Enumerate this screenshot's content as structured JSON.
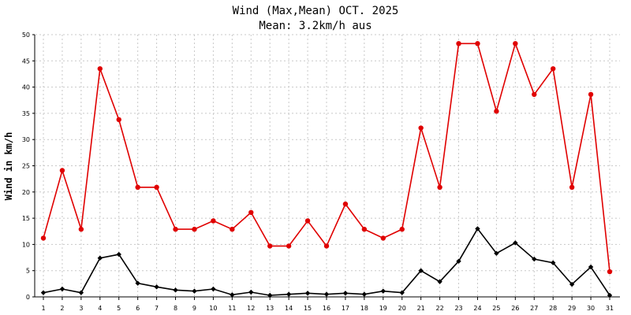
{
  "chart_data": {
    "type": "line",
    "title": "Wind (Max,Mean) OCT. 2025",
    "subtitle": "Mean: 3.2km/h aus",
    "xlabel": "",
    "ylabel": "Wind in km/h",
    "xlim": [
      1,
      31
    ],
    "ylim": [
      0,
      50
    ],
    "yticks": [
      0,
      5,
      10,
      15,
      20,
      25,
      30,
      35,
      40,
      45,
      50
    ],
    "grid": true,
    "legend": "none",
    "categories": [
      1,
      2,
      3,
      4,
      5,
      6,
      7,
      8,
      9,
      10,
      11,
      12,
      13,
      14,
      15,
      16,
      17,
      18,
      19,
      20,
      21,
      22,
      23,
      24,
      25,
      26,
      27,
      28,
      29,
      30,
      31
    ],
    "series": [
      {
        "color": "#e00000",
        "marker": "circle",
        "values": [
          11.2,
          24.1,
          12.9,
          43.5,
          33.8,
          20.9,
          20.9,
          12.9,
          12.9,
          14.5,
          12.9,
          16.1,
          9.7,
          9.7,
          14.5,
          9.7,
          17.7,
          12.9,
          11.2,
          12.9,
          32.2,
          20.9,
          48.3,
          48.3,
          35.4,
          48.3,
          38.6,
          43.5,
          20.9,
          38.6,
          4.8
        ]
      },
      {
        "color": "#000000",
        "marker": "diamond",
        "values": [
          0.8,
          1.5,
          0.8,
          7.4,
          8.1,
          2.6,
          1.9,
          1.3,
          1.1,
          1.5,
          0.4,
          0.9,
          0.3,
          0.5,
          0.7,
          0.5,
          0.7,
          0.5,
          1.1,
          0.8,
          5.0,
          2.9,
          6.8,
          13.0,
          8.3,
          10.3,
          7.2,
          6.5,
          2.4,
          5.7,
          0.3
        ]
      }
    ]
  }
}
